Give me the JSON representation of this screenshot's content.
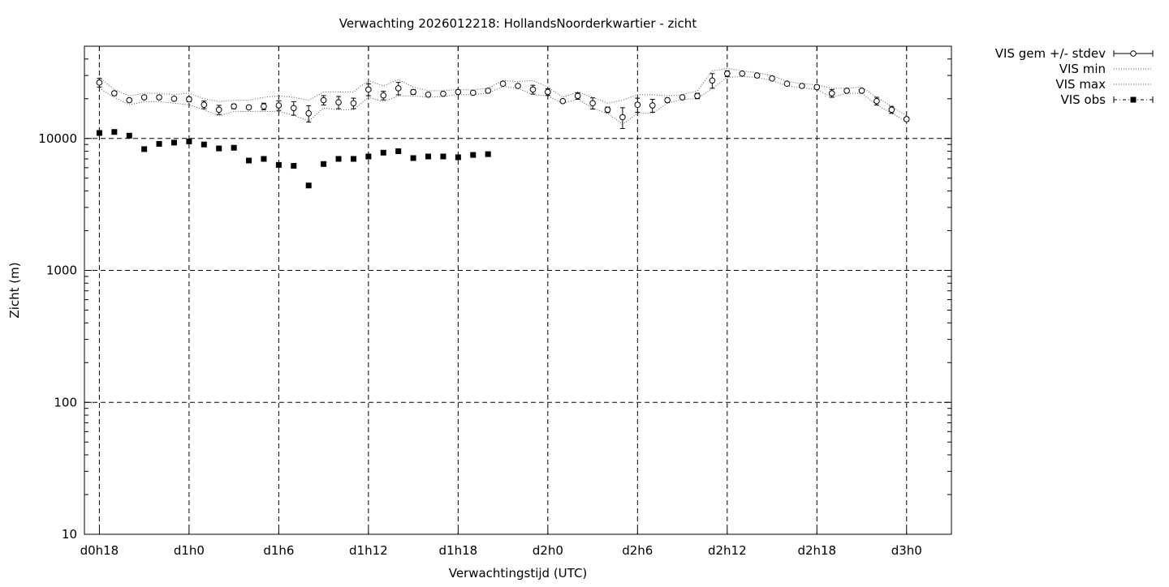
{
  "chart_data": {
    "type": "scatter",
    "title": "Verwachting 2026012218: HollandsNoorderkwartier - zicht",
    "xlabel": "Verwachtingstijd (UTC)",
    "ylabel": "Zicht (m)",
    "x_unit": "hours since d0h18",
    "xlim": [
      -1,
      57
    ],
    "ylim": [
      10,
      50000
    ],
    "yscale": "log",
    "grid": true,
    "legend_position": "outside-top-right",
    "x_ticks": [
      {
        "x": 0,
        "label": "d0h18"
      },
      {
        "x": 6,
        "label": "d1h0"
      },
      {
        "x": 12,
        "label": "d1h6"
      },
      {
        "x": 18,
        "label": "d1h12"
      },
      {
        "x": 24,
        "label": "d1h18"
      },
      {
        "x": 30,
        "label": "d2h0"
      },
      {
        "x": 36,
        "label": "d2h6"
      },
      {
        "x": 42,
        "label": "d2h12"
      },
      {
        "x": 48,
        "label": "d2h18"
      },
      {
        "x": 54,
        "label": "d3h0"
      }
    ],
    "y_ticks": [
      {
        "y": 10,
        "label": "10"
      },
      {
        "y": 100,
        "label": "100"
      },
      {
        "y": 1000,
        "label": "1000"
      },
      {
        "y": 10000,
        "label": "10000"
      }
    ],
    "series": [
      {
        "name": "VIS gem +/- stdev",
        "style": "open-circle-errorbar",
        "x": [
          0,
          1,
          2,
          3,
          4,
          5,
          6,
          7,
          8,
          9,
          10,
          11,
          12,
          13,
          14,
          15,
          16,
          17,
          18,
          19,
          20,
          21,
          22,
          23,
          24,
          25,
          26,
          27,
          28,
          29,
          30,
          31,
          32,
          33,
          34,
          35,
          36,
          37,
          38,
          39,
          40,
          41,
          42,
          43,
          44,
          45,
          46,
          47,
          48,
          49,
          50,
          51,
          52,
          53,
          54
        ],
        "y": [
          26500,
          22000,
          19500,
          20500,
          20500,
          20000,
          19800,
          18000,
          16500,
          17500,
          17200,
          17500,
          17800,
          17000,
          15500,
          19500,
          18800,
          18500,
          23500,
          21200,
          24000,
          22500,
          21500,
          21800,
          22500,
          22200,
          23000,
          26000,
          25000,
          23500,
          22500,
          19200,
          21000,
          18500,
          16500,
          14500,
          18000,
          17800,
          19500,
          20500,
          21000,
          27500,
          31000,
          31000,
          30000,
          28500,
          26000,
          25000,
          24500,
          22000,
          23000,
          23000,
          19200,
          16500,
          14000
        ],
        "yerr": [
          2000,
          800,
          600,
          500,
          500,
          500,
          800,
          1200,
          1300,
          700,
          500,
          1000,
          1500,
          2000,
          2200,
          1600,
          2000,
          1700,
          2400,
          1600,
          2600,
          900,
          500,
          500,
          500,
          500,
          500,
          600,
          400,
          1800,
          1300,
          500,
          1200,
          1800,
          800,
          2600,
          2200,
          2000,
          700,
          500,
          1000,
          3500,
          1600,
          400,
          400,
          600,
          400,
          400,
          500,
          1500,
          600,
          500,
          1300,
          1000,
          500
        ]
      },
      {
        "name": "VIS min",
        "style": "dotted",
        "x": [
          0,
          1,
          2,
          3,
          4,
          5,
          6,
          7,
          8,
          9,
          10,
          11,
          12,
          13,
          14,
          15,
          16,
          17,
          18,
          19,
          20,
          21,
          22,
          23,
          24,
          25,
          26,
          27,
          28,
          29,
          30,
          31,
          32,
          33,
          34,
          35,
          36,
          37,
          38,
          39,
          40,
          41,
          42,
          43,
          44,
          45,
          46,
          47,
          48,
          49,
          50,
          51,
          52,
          53,
          54
        ],
        "y": [
          24000,
          20500,
          18000,
          19000,
          19000,
          18500,
          18000,
          16500,
          14800,
          16000,
          16000,
          16000,
          16000,
          15000,
          13500,
          17000,
          16500,
          16500,
          20500,
          19000,
          21000,
          21000,
          20500,
          20800,
          21500,
          21500,
          22000,
          24800,
          24000,
          21500,
          21000,
          18500,
          19800,
          17000,
          15500,
          12800,
          15500,
          15500,
          18500,
          19800,
          20000,
          24000,
          29000,
          29500,
          29000,
          27500,
          25000,
          24200,
          23500,
          20500,
          22000,
          22000,
          18000,
          15500,
          13500
        ]
      },
      {
        "name": "VIS max",
        "style": "dotted",
        "x": [
          0,
          1,
          2,
          3,
          4,
          5,
          6,
          7,
          8,
          9,
          10,
          11,
          12,
          13,
          14,
          15,
          16,
          17,
          18,
          19,
          20,
          21,
          22,
          23,
          24,
          25,
          26,
          27,
          28,
          29,
          30,
          31,
          32,
          33,
          34,
          35,
          36,
          37,
          38,
          39,
          40,
          41,
          42,
          43,
          44,
          45,
          46,
          47,
          48,
          49,
          50,
          51,
          52,
          53,
          54
        ],
        "y": [
          29000,
          23500,
          21000,
          22000,
          22000,
          21500,
          22000,
          20000,
          19000,
          19500,
          19500,
          20500,
          21000,
          20500,
          19500,
          22500,
          22500,
          22500,
          27500,
          25000,
          28000,
          24500,
          23000,
          23000,
          23500,
          23300,
          24000,
          27500,
          27000,
          27500,
          24500,
          20500,
          22500,
          20500,
          18500,
          19500,
          21500,
          21500,
          21000,
          21500,
          23000,
          32500,
          34000,
          32500,
          31500,
          30000,
          27000,
          26000,
          25500,
          24000,
          24000,
          24500,
          20500,
          17500,
          14800
        ]
      },
      {
        "name": "VIS obs",
        "style": "filled-square",
        "x": [
          0,
          1,
          2,
          3,
          4,
          5,
          6,
          7,
          8,
          9,
          10,
          11,
          12,
          13,
          14,
          15,
          16,
          17,
          18,
          19,
          20,
          21,
          22,
          23,
          24,
          25,
          26
        ],
        "y": [
          11000,
          11200,
          10500,
          8300,
          9100,
          9300,
          9500,
          9000,
          8400,
          8500,
          6800,
          7000,
          6300,
          6200,
          4400,
          6400,
          7000,
          7000,
          7300,
          7800,
          8000,
          7100,
          7300,
          7300,
          7200,
          7500,
          7600
        ]
      }
    ]
  }
}
